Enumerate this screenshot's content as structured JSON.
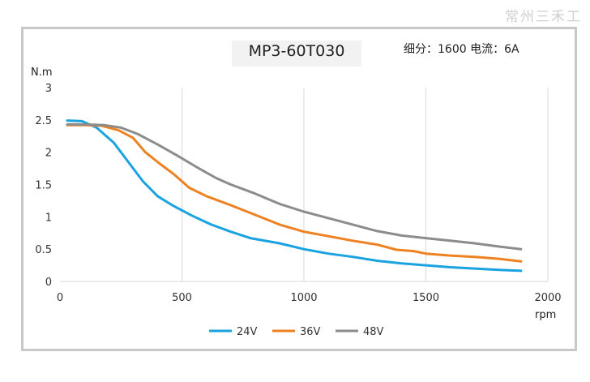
{
  "watermark": "常州三禾工",
  "spec_text": "细分：1600 电流：6A",
  "colors": {
    "24V": "#1aa3e0",
    "36V": "#ee8222",
    "48V": "#8c8c8c",
    "grid": "#d9d9d9"
  },
  "chart_data": {
    "type": "line",
    "title": "MP3-60T030",
    "xlabel": "rpm",
    "ylabel": "N.m",
    "xlim": [
      0,
      2000
    ],
    "ylim": [
      0,
      3
    ],
    "x_ticks": [
      0,
      500,
      1000,
      1500,
      2000
    ],
    "y_ticks": [
      0,
      0.5,
      1,
      1.5,
      2,
      2.5,
      3
    ],
    "y_tick_labels": [
      "0",
      "0.5",
      "1",
      "1.5",
      "2",
      "2.5",
      "3"
    ],
    "grid": "vertical",
    "legend_position": "bottom",
    "series": [
      {
        "name": "24V",
        "x": [
          30,
          90,
          150,
          220,
          280,
          340,
          400,
          460,
          540,
          620,
          700,
          780,
          900,
          1000,
          1100,
          1200,
          1300,
          1400,
          1500,
          1600,
          1700,
          1800,
          1890
        ],
        "y": [
          2.49,
          2.48,
          2.38,
          2.15,
          1.85,
          1.55,
          1.32,
          1.18,
          1.02,
          0.88,
          0.77,
          0.67,
          0.59,
          0.5,
          0.43,
          0.38,
          0.32,
          0.28,
          0.25,
          0.22,
          0.2,
          0.18,
          0.165
        ]
      },
      {
        "name": "36V",
        "x": [
          30,
          100,
          170,
          240,
          300,
          350,
          410,
          470,
          530,
          600,
          700,
          800,
          900,
          1000,
          1100,
          1200,
          1300,
          1380,
          1450,
          1500,
          1600,
          1700,
          1800,
          1890
        ],
        "y": [
          2.42,
          2.42,
          2.41,
          2.34,
          2.22,
          2.0,
          1.82,
          1.65,
          1.45,
          1.32,
          1.18,
          1.03,
          0.88,
          0.77,
          0.7,
          0.63,
          0.57,
          0.49,
          0.47,
          0.43,
          0.4,
          0.38,
          0.35,
          0.31
        ]
      },
      {
        "name": "48V",
        "x": [
          30,
          100,
          180,
          250,
          320,
          400,
          480,
          560,
          640,
          700,
          800,
          900,
          1000,
          1100,
          1200,
          1300,
          1400,
          1500,
          1600,
          1700,
          1800,
          1890
        ],
        "y": [
          2.43,
          2.43,
          2.42,
          2.38,
          2.28,
          2.12,
          1.95,
          1.77,
          1.6,
          1.5,
          1.36,
          1.2,
          1.08,
          0.98,
          0.88,
          0.78,
          0.71,
          0.67,
          0.63,
          0.59,
          0.54,
          0.5
        ]
      }
    ]
  }
}
